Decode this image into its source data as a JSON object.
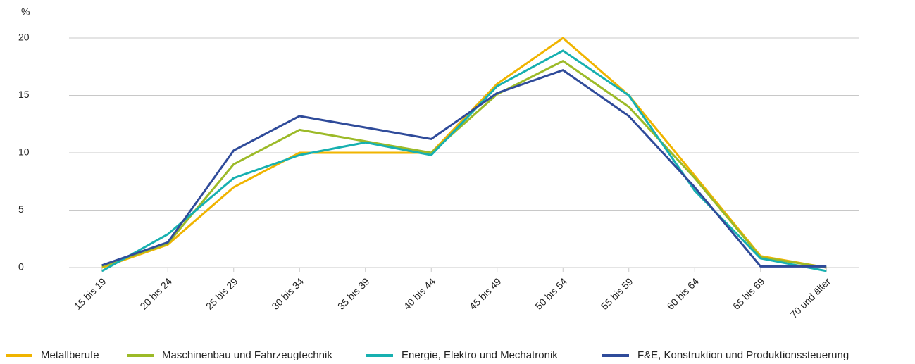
{
  "chart_data": {
    "type": "line",
    "y_label": "%",
    "categories": [
      "15 bis 19",
      "20 bis 24",
      "25 bis 29",
      "30 bis 34",
      "35 bis 39",
      "40 bis 44",
      "45 bis 49",
      "50 bis 54",
      "55 bis 59",
      "60 bis 64",
      "65 bis 69",
      "70 und älter"
    ],
    "series": [
      {
        "name": "Metallberufe",
        "color": "#f0b400",
        "values": [
          0,
          2,
          7,
          10,
          10,
          10,
          16,
          20,
          15,
          8,
          1,
          0
        ]
      },
      {
        "name": "Maschinenbau und Fahrzeugtechnik",
        "color": "#9cba28",
        "values": [
          0.1,
          2.1,
          9,
          12,
          11,
          10,
          15.1,
          18,
          14,
          7.8,
          0.9,
          0
        ]
      },
      {
        "name": "Energie, Elektro und Mechatronik",
        "color": "#17b0b0",
        "values": [
          -0.3,
          2.9,
          7.8,
          9.8,
          10.9,
          9.8,
          15.8,
          18.9,
          15,
          6.7,
          0.8,
          -0.3
        ]
      },
      {
        "name": "F&E, Konstruktion und Produktionssteuerung",
        "color": "#2f4b9a",
        "values": [
          0.2,
          2.2,
          10.2,
          13.2,
          12.2,
          11.2,
          15.2,
          17.2,
          13.2,
          7,
          0.1,
          0.1
        ]
      }
    ],
    "ylim": [
      0,
      20
    ],
    "yticks": [
      0,
      5,
      10,
      15,
      20
    ],
    "grid": true,
    "legend": "bottom"
  }
}
